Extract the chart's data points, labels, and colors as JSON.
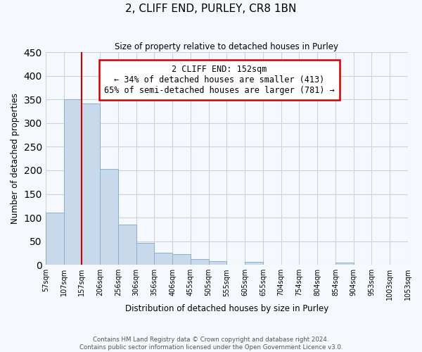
{
  "title": "2, CLIFF END, PURLEY, CR8 1BN",
  "subtitle": "Size of property relative to detached houses in Purley",
  "xlabel": "Distribution of detached houses by size in Purley",
  "ylabel": "Number of detached properties",
  "bar_values": [
    110,
    350,
    342,
    203,
    85,
    47,
    25,
    22,
    12,
    8,
    0,
    7,
    0,
    0,
    0,
    0,
    5,
    0,
    0,
    0
  ],
  "bin_labels": [
    "57sqm",
    "107sqm",
    "157sqm",
    "206sqm",
    "256sqm",
    "306sqm",
    "356sqm",
    "406sqm",
    "455sqm",
    "505sqm",
    "555sqm",
    "605sqm",
    "655sqm",
    "704sqm",
    "754sqm",
    "804sqm",
    "854sqm",
    "904sqm",
    "953sqm",
    "1003sqm",
    "1053sqm"
  ],
  "bar_color": "#c8d9ec",
  "bar_edge_color": "#8ab0cc",
  "vline_x": 2,
  "vline_color": "#cc0000",
  "annotation_title": "2 CLIFF END: 152sqm",
  "annotation_line1": "← 34% of detached houses are smaller (413)",
  "annotation_line2": "65% of semi-detached houses are larger (781) →",
  "annotation_box_color": "#ffffff",
  "annotation_box_edge": "#cc0000",
  "ylim": [
    0,
    450
  ],
  "yticks": [
    0,
    50,
    100,
    150,
    200,
    250,
    300,
    350,
    400,
    450
  ],
  "footer_line1": "Contains HM Land Registry data © Crown copyright and database right 2024.",
  "footer_line2": "Contains public sector information licensed under the Open Government Licence v3.0.",
  "background_color": "#f5f8fc",
  "grid_color": "#c8d4e4"
}
